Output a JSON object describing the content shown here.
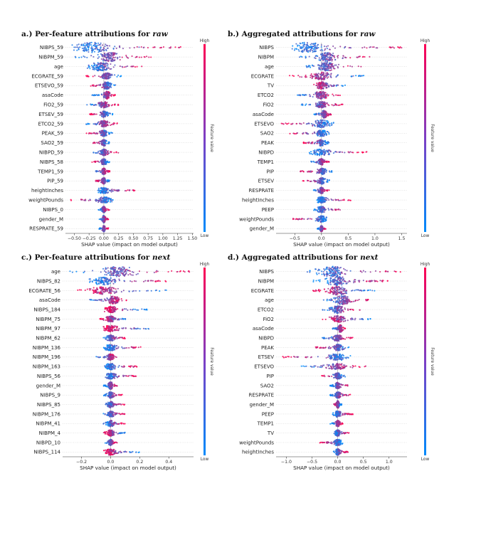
{
  "colors": {
    "high": "#ff0052",
    "low": "#008bfb",
    "mid": "#7c3fc5"
  },
  "colorbar": {
    "high_label": "High",
    "low_label": "Low",
    "title": "Feature value"
  },
  "chart_data": [
    {
      "type": "scatter",
      "subtype": "shap-beeswarm",
      "title_prefix": "a.) Per-feature attributions for ",
      "title_em": "raw",
      "xlabel": "SHAP value (impact on model output)",
      "xlim": [
        -0.65,
        1.52
      ],
      "xticks": [
        -0.5,
        -0.25,
        0.0,
        0.25,
        0.5,
        0.75,
        1.0,
        1.25,
        1.5
      ],
      "xtick_labels": [
        "−0.50",
        "−0.25",
        "0.00",
        "0.25",
        "0.50",
        "0.75",
        "1.00",
        "1.25",
        "1.50"
      ],
      "features": [
        {
          "name": "NIBPS_59",
          "lo": -0.55,
          "hi": 1.4,
          "peak": -0.2,
          "w": 7,
          "skew": 1
        },
        {
          "name": "NIBPM_59",
          "lo": -0.5,
          "hi": 0.8,
          "peak": 0.1,
          "w": 6,
          "skew": 1
        },
        {
          "name": "age",
          "lo": -0.35,
          "hi": 0.7,
          "peak": -0.05,
          "w": 6,
          "skew": 1
        },
        {
          "name": "ECGRATE_59",
          "lo": -0.3,
          "hi": 0.3,
          "peak": 0.05,
          "w": 4,
          "skew": -1
        },
        {
          "name": "ETSEVO_59",
          "lo": -0.25,
          "hi": 0.22,
          "peak": 0.05,
          "w": 5,
          "skew": -1
        },
        {
          "name": "asaCode",
          "lo": -0.2,
          "hi": 0.2,
          "peak": 0.05,
          "w": 5,
          "skew": 1
        },
        {
          "name": "FiO2_59",
          "lo": -0.3,
          "hi": 0.25,
          "peak": 0.0,
          "w": 4,
          "skew": 1
        },
        {
          "name": "ETSEV_59",
          "lo": -0.25,
          "hi": 0.15,
          "peak": 0.0,
          "w": 4,
          "skew": -1
        },
        {
          "name": "ETCO2_59",
          "lo": -0.3,
          "hi": 0.25,
          "peak": 0.0,
          "w": 4,
          "skew": 1
        },
        {
          "name": "PEAK_59",
          "lo": -0.3,
          "hi": 0.15,
          "peak": 0.0,
          "w": 4,
          "skew": -1
        },
        {
          "name": "SAO2_59",
          "lo": -0.2,
          "hi": 0.1,
          "peak": 0.0,
          "w": 4,
          "skew": -1
        },
        {
          "name": "NIBPD_59",
          "lo": -0.2,
          "hi": 0.25,
          "peak": 0.0,
          "w": 4,
          "skew": 1
        },
        {
          "name": "NIBPS_58",
          "lo": -0.2,
          "hi": 0.1,
          "peak": 0.0,
          "w": 4,
          "skew": -1
        },
        {
          "name": "TEMP1_59",
          "lo": -0.15,
          "hi": 0.1,
          "peak": 0.0,
          "w": 4,
          "skew": 1
        },
        {
          "name": "PIP_59",
          "lo": -0.15,
          "hi": 0.1,
          "peak": 0.0,
          "w": 4,
          "skew": -1
        },
        {
          "name": "heightInches",
          "lo": -0.1,
          "hi": 0.55,
          "peak": 0.0,
          "w": 4,
          "skew": 1
        },
        {
          "name": "weightPounds",
          "lo": -0.6,
          "hi": 0.2,
          "peak": 0.0,
          "w": 4,
          "skew": -1
        },
        {
          "name": "NIBPS_0",
          "lo": -0.1,
          "hi": 0.1,
          "peak": 0.0,
          "w": 4,
          "skew": 1
        },
        {
          "name": "gender_M",
          "lo": -0.08,
          "hi": 0.08,
          "peak": 0.0,
          "w": 5,
          "skew": 1
        },
        {
          "name": "RESPRATE_59",
          "lo": -0.08,
          "hi": 0.08,
          "peak": 0.0,
          "w": 4,
          "skew": 1
        }
      ]
    },
    {
      "type": "scatter",
      "subtype": "shap-beeswarm",
      "title_prefix": "b.) Aggregated attributions for ",
      "title_em": "raw",
      "xlabel": "SHAP value (impact on model output)",
      "xlim": [
        -0.85,
        1.6
      ],
      "xticks": [
        -0.5,
        0.0,
        0.5,
        1.0,
        1.5
      ],
      "xtick_labels": [
        "−0.5",
        "0.0",
        "0.5",
        "1.0",
        "1.5"
      ],
      "features": [
        {
          "name": "NIBPS",
          "lo": -0.55,
          "hi": 1.5,
          "peak": -0.25,
          "w": 7,
          "skew": 1
        },
        {
          "name": "NIBPM",
          "lo": -0.45,
          "hi": 0.9,
          "peak": 0.1,
          "w": 6,
          "skew": 1
        },
        {
          "name": "age",
          "lo": -0.35,
          "hi": 0.75,
          "peak": 0.1,
          "w": 6,
          "skew": 1
        },
        {
          "name": "ECGRATE",
          "lo": -0.6,
          "hi": 0.8,
          "peak": 0.0,
          "w": 5,
          "skew": -1
        },
        {
          "name": "TV",
          "lo": -0.2,
          "hi": 0.45,
          "peak": 0.0,
          "w": 5,
          "skew": -1
        },
        {
          "name": "ETCO2",
          "lo": -0.5,
          "hi": 0.35,
          "peak": 0.0,
          "w": 5,
          "skew": 1
        },
        {
          "name": "FiO2",
          "lo": -0.4,
          "hi": 0.4,
          "peak": 0.0,
          "w": 4,
          "skew": 1
        },
        {
          "name": "asaCode",
          "lo": -0.15,
          "hi": 0.2,
          "peak": 0.05,
          "w": 5,
          "skew": 1
        },
        {
          "name": "ETSEVO",
          "lo": -0.75,
          "hi": 0.25,
          "peak": 0.0,
          "w": 5,
          "skew": -1
        },
        {
          "name": "SAO2",
          "lo": -0.6,
          "hi": 0.15,
          "peak": 0.0,
          "w": 4,
          "skew": -1
        },
        {
          "name": "PEAK",
          "lo": -0.35,
          "hi": 0.15,
          "peak": 0.0,
          "w": 4,
          "skew": -1
        },
        {
          "name": "NIBPD",
          "lo": -0.25,
          "hi": 0.9,
          "peak": 0.0,
          "w": 4,
          "skew": 1
        },
        {
          "name": "TEMP1",
          "lo": -0.2,
          "hi": 0.15,
          "peak": 0.0,
          "w": 4,
          "skew": 1
        },
        {
          "name": "PIP",
          "lo": -0.4,
          "hi": 0.2,
          "peak": 0.0,
          "w": 4,
          "skew": -1
        },
        {
          "name": "ETSEV",
          "lo": -0.35,
          "hi": 0.15,
          "peak": 0.0,
          "w": 4,
          "skew": -1
        },
        {
          "name": "RESPRATE",
          "lo": -0.15,
          "hi": 0.15,
          "peak": 0.0,
          "w": 4,
          "skew": 1
        },
        {
          "name": "heightInches",
          "lo": -0.1,
          "hi": 0.55,
          "peak": 0.0,
          "w": 4,
          "skew": 1
        },
        {
          "name": "PEEP",
          "lo": -0.15,
          "hi": 0.4,
          "peak": 0.0,
          "w": 4,
          "skew": 1
        },
        {
          "name": "weightPounds",
          "lo": -0.55,
          "hi": 0.15,
          "peak": 0.0,
          "w": 4,
          "skew": -1
        },
        {
          "name": "gender_M",
          "lo": -0.08,
          "hi": 0.08,
          "peak": 0.0,
          "w": 4,
          "skew": 1
        }
      ]
    },
    {
      "type": "scatter",
      "subtype": "shap-beeswarm",
      "title_prefix": "c.) Per-feature attributions for ",
      "title_em": "next",
      "xlabel": "SHAP value (impact on model output)",
      "xlim": [
        -0.33,
        0.57
      ],
      "xticks": [
        -0.2,
        0.0,
        0.2,
        0.4
      ],
      "xtick_labels": [
        "−0.2",
        "0.0",
        "0.2",
        "0.4"
      ],
      "features": [
        {
          "name": "age",
          "lo": -0.3,
          "hi": 0.55,
          "peak": 0.05,
          "w": 7,
          "skew": 1
        },
        {
          "name": "NIBPS_82",
          "lo": -0.15,
          "hi": 0.4,
          "peak": -0.05,
          "w": 5,
          "skew": 1
        },
        {
          "name": "ECGRATE_56",
          "lo": -0.23,
          "hi": 0.4,
          "peak": -0.05,
          "w": 5,
          "skew": -1
        },
        {
          "name": "asaCode",
          "lo": -0.15,
          "hi": 0.12,
          "peak": 0.02,
          "w": 5,
          "skew": 1
        },
        {
          "name": "NIBPS_184",
          "lo": -0.05,
          "hi": 0.25,
          "peak": 0.0,
          "w": 4,
          "skew": -1
        },
        {
          "name": "NIBPM_75",
          "lo": -0.08,
          "hi": 0.12,
          "peak": 0.0,
          "w": 4,
          "skew": -1
        },
        {
          "name": "NIBPM_97",
          "lo": -0.05,
          "hi": 0.28,
          "peak": 0.0,
          "w": 4,
          "skew": -1
        },
        {
          "name": "NIBPM_62",
          "lo": -0.06,
          "hi": 0.1,
          "peak": 0.0,
          "w": 4,
          "skew": 1
        },
        {
          "name": "NIBPM_136",
          "lo": -0.05,
          "hi": 0.22,
          "peak": 0.0,
          "w": 4,
          "skew": 1
        },
        {
          "name": "NIBPM_196",
          "lo": -0.1,
          "hi": 0.05,
          "peak": 0.0,
          "w": 4,
          "skew": 1
        },
        {
          "name": "NIBPM_163",
          "lo": -0.05,
          "hi": 0.18,
          "peak": 0.0,
          "w": 4,
          "skew": 1
        },
        {
          "name": "NIBPS_56",
          "lo": -0.05,
          "hi": 0.18,
          "peak": 0.0,
          "w": 4,
          "skew": 1
        },
        {
          "name": "gender_M",
          "lo": -0.05,
          "hi": 0.05,
          "peak": 0.0,
          "w": 5,
          "skew": 1
        },
        {
          "name": "NIBPS_9",
          "lo": -0.05,
          "hi": 0.08,
          "peak": 0.0,
          "w": 4,
          "skew": 1
        },
        {
          "name": "NIBPS_85",
          "lo": -0.05,
          "hi": 0.1,
          "peak": 0.0,
          "w": 4,
          "skew": 1
        },
        {
          "name": "NIBPM_176",
          "lo": -0.05,
          "hi": 0.1,
          "peak": 0.0,
          "w": 4,
          "skew": 1
        },
        {
          "name": "NIBPM_41",
          "lo": -0.05,
          "hi": 0.1,
          "peak": 0.0,
          "w": 4,
          "skew": 1
        },
        {
          "name": "NIBPM_4",
          "lo": -0.05,
          "hi": 0.1,
          "peak": 0.0,
          "w": 4,
          "skew": -1
        },
        {
          "name": "NIBPD_10",
          "lo": -0.04,
          "hi": 0.05,
          "peak": 0.0,
          "w": 4,
          "skew": 1
        },
        {
          "name": "NIBPS_114",
          "lo": -0.05,
          "hi": 0.2,
          "peak": 0.0,
          "w": 4,
          "skew": -1
        }
      ]
    },
    {
      "type": "scatter",
      "subtype": "shap-beeswarm",
      "title_prefix": "d.) Aggregated attributions for ",
      "title_em": "next",
      "xlabel": "SHAP value (impact on model output)",
      "xlim": [
        -1.2,
        1.35
      ],
      "xticks": [
        -1.0,
        -0.5,
        0.0,
        0.5,
        1.0
      ],
      "xtick_labels": [
        "−1.0",
        "−0.5",
        "0.0",
        "0.5",
        "1.0"
      ],
      "features": [
        {
          "name": "NIBPS",
          "lo": -0.6,
          "hi": 1.25,
          "peak": -0.1,
          "w": 7,
          "skew": 1
        },
        {
          "name": "NIBPM",
          "lo": -0.5,
          "hi": 1.0,
          "peak": 0.0,
          "w": 6,
          "skew": 1
        },
        {
          "name": "ECGRATE",
          "lo": -0.5,
          "hi": 0.75,
          "peak": 0.0,
          "w": 6,
          "skew": -1
        },
        {
          "name": "age",
          "lo": -0.3,
          "hi": 0.6,
          "peak": 0.1,
          "w": 6,
          "skew": 1
        },
        {
          "name": "ETCO2",
          "lo": -0.3,
          "hi": 0.45,
          "peak": 0.0,
          "w": 5,
          "skew": 1
        },
        {
          "name": "FiO2",
          "lo": -0.35,
          "hi": 0.65,
          "peak": 0.0,
          "w": 4,
          "skew": -1
        },
        {
          "name": "asaCode",
          "lo": -0.1,
          "hi": 0.15,
          "peak": 0.05,
          "w": 5,
          "skew": 1
        },
        {
          "name": "NIBPD",
          "lo": -0.3,
          "hi": 0.3,
          "peak": 0.0,
          "w": 4,
          "skew": 1
        },
        {
          "name": "PEAK",
          "lo": -0.45,
          "hi": 0.25,
          "peak": 0.0,
          "w": 4,
          "skew": -1
        },
        {
          "name": "ETSEV",
          "lo": -1.1,
          "hi": 0.25,
          "peak": 0.0,
          "w": 4,
          "skew": -1
        },
        {
          "name": "ETSEVO",
          "lo": -0.75,
          "hi": 0.55,
          "peak": 0.0,
          "w": 4,
          "skew": 1
        },
        {
          "name": "PIP",
          "lo": -0.35,
          "hi": 0.15,
          "peak": 0.0,
          "w": 4,
          "skew": -1
        },
        {
          "name": "SAO2",
          "lo": -0.15,
          "hi": 0.2,
          "peak": 0.0,
          "w": 4,
          "skew": 1
        },
        {
          "name": "RESPRATE",
          "lo": -0.15,
          "hi": 0.25,
          "peak": 0.0,
          "w": 4,
          "skew": 1
        },
        {
          "name": "gender_M",
          "lo": -0.08,
          "hi": 0.08,
          "peak": 0.0,
          "w": 5,
          "skew": -1
        },
        {
          "name": "PEEP",
          "lo": -0.1,
          "hi": 0.3,
          "peak": 0.0,
          "w": 4,
          "skew": 1
        },
        {
          "name": "TEMP1",
          "lo": -0.15,
          "hi": 0.1,
          "peak": 0.0,
          "w": 4,
          "skew": 1
        },
        {
          "name": "TV",
          "lo": -0.1,
          "hi": 0.25,
          "peak": 0.0,
          "w": 4,
          "skew": 1
        },
        {
          "name": "weightPounds",
          "lo": -0.4,
          "hi": 0.1,
          "peak": 0.0,
          "w": 4,
          "skew": -1
        },
        {
          "name": "heightInches",
          "lo": -0.1,
          "hi": 0.2,
          "peak": 0.0,
          "w": 4,
          "skew": 1
        }
      ]
    }
  ]
}
